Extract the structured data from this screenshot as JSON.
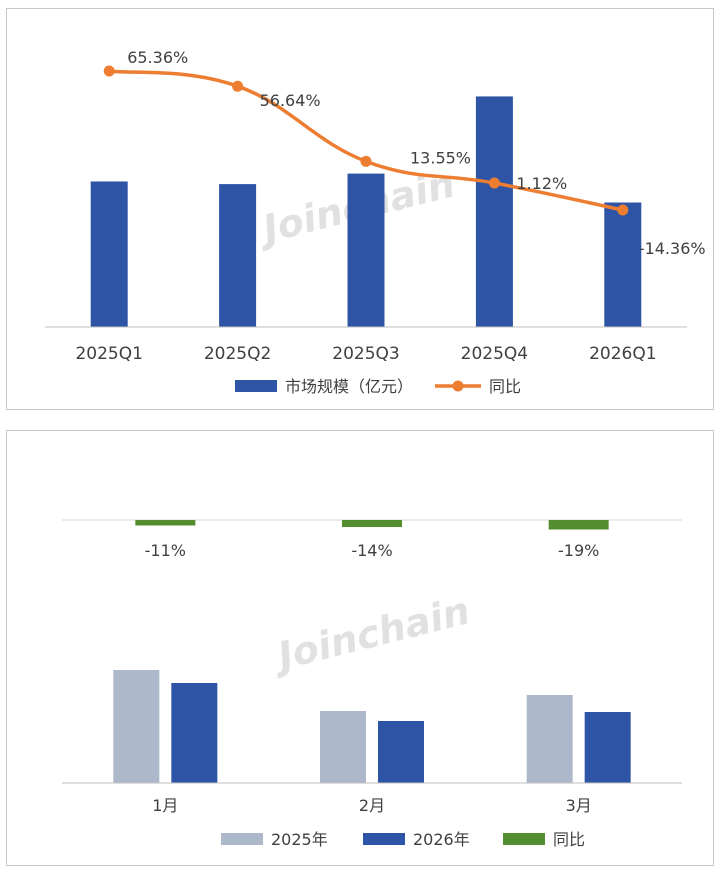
{
  "colors": {
    "bar_blue": "#2e54a5",
    "line_orange": "#ed7d31",
    "bar_grey": "#adb9ca",
    "bar_green": "#538d2f",
    "axis": "#bfbfbf",
    "text": "#404040"
  },
  "watermark": "Joinchain",
  "chart_data": [
    {
      "type": "bar",
      "categories": [
        "2025Q1",
        "2025Q2",
        "2025Q3",
        "2025Q4",
        "2026Q1"
      ],
      "series": [
        {
          "name": "市场规模（亿元）",
          "type": "bar",
          "values": [
            166,
            163,
            175,
            263,
            142
          ]
        },
        {
          "name": "同比",
          "type": "line",
          "values": [
            65.36,
            56.64,
            13.55,
            1.12,
            -14.36
          ],
          "labels": [
            "65.36%",
            "56.64%",
            "13.55%",
            "1.12%",
            "-14.36%"
          ]
        }
      ],
      "legend": [
        "市场规模（亿元）",
        "同比"
      ],
      "legend_position": "bottom"
    },
    {
      "type": "bar",
      "categories": [
        "1月",
        "2月",
        "3月"
      ],
      "series": [
        {
          "name": "2025年",
          "type": "bar",
          "values": [
            113,
            72,
            88
          ]
        },
        {
          "name": "2026年",
          "type": "bar",
          "values": [
            100,
            62,
            71
          ]
        },
        {
          "name": "同比",
          "type": "bar",
          "values": [
            -11,
            -14,
            -19
          ],
          "labels": [
            "-11%",
            "-14%",
            "-19%"
          ]
        }
      ],
      "legend": [
        "2025年",
        "2026年",
        "同比"
      ],
      "legend_position": "bottom"
    }
  ]
}
